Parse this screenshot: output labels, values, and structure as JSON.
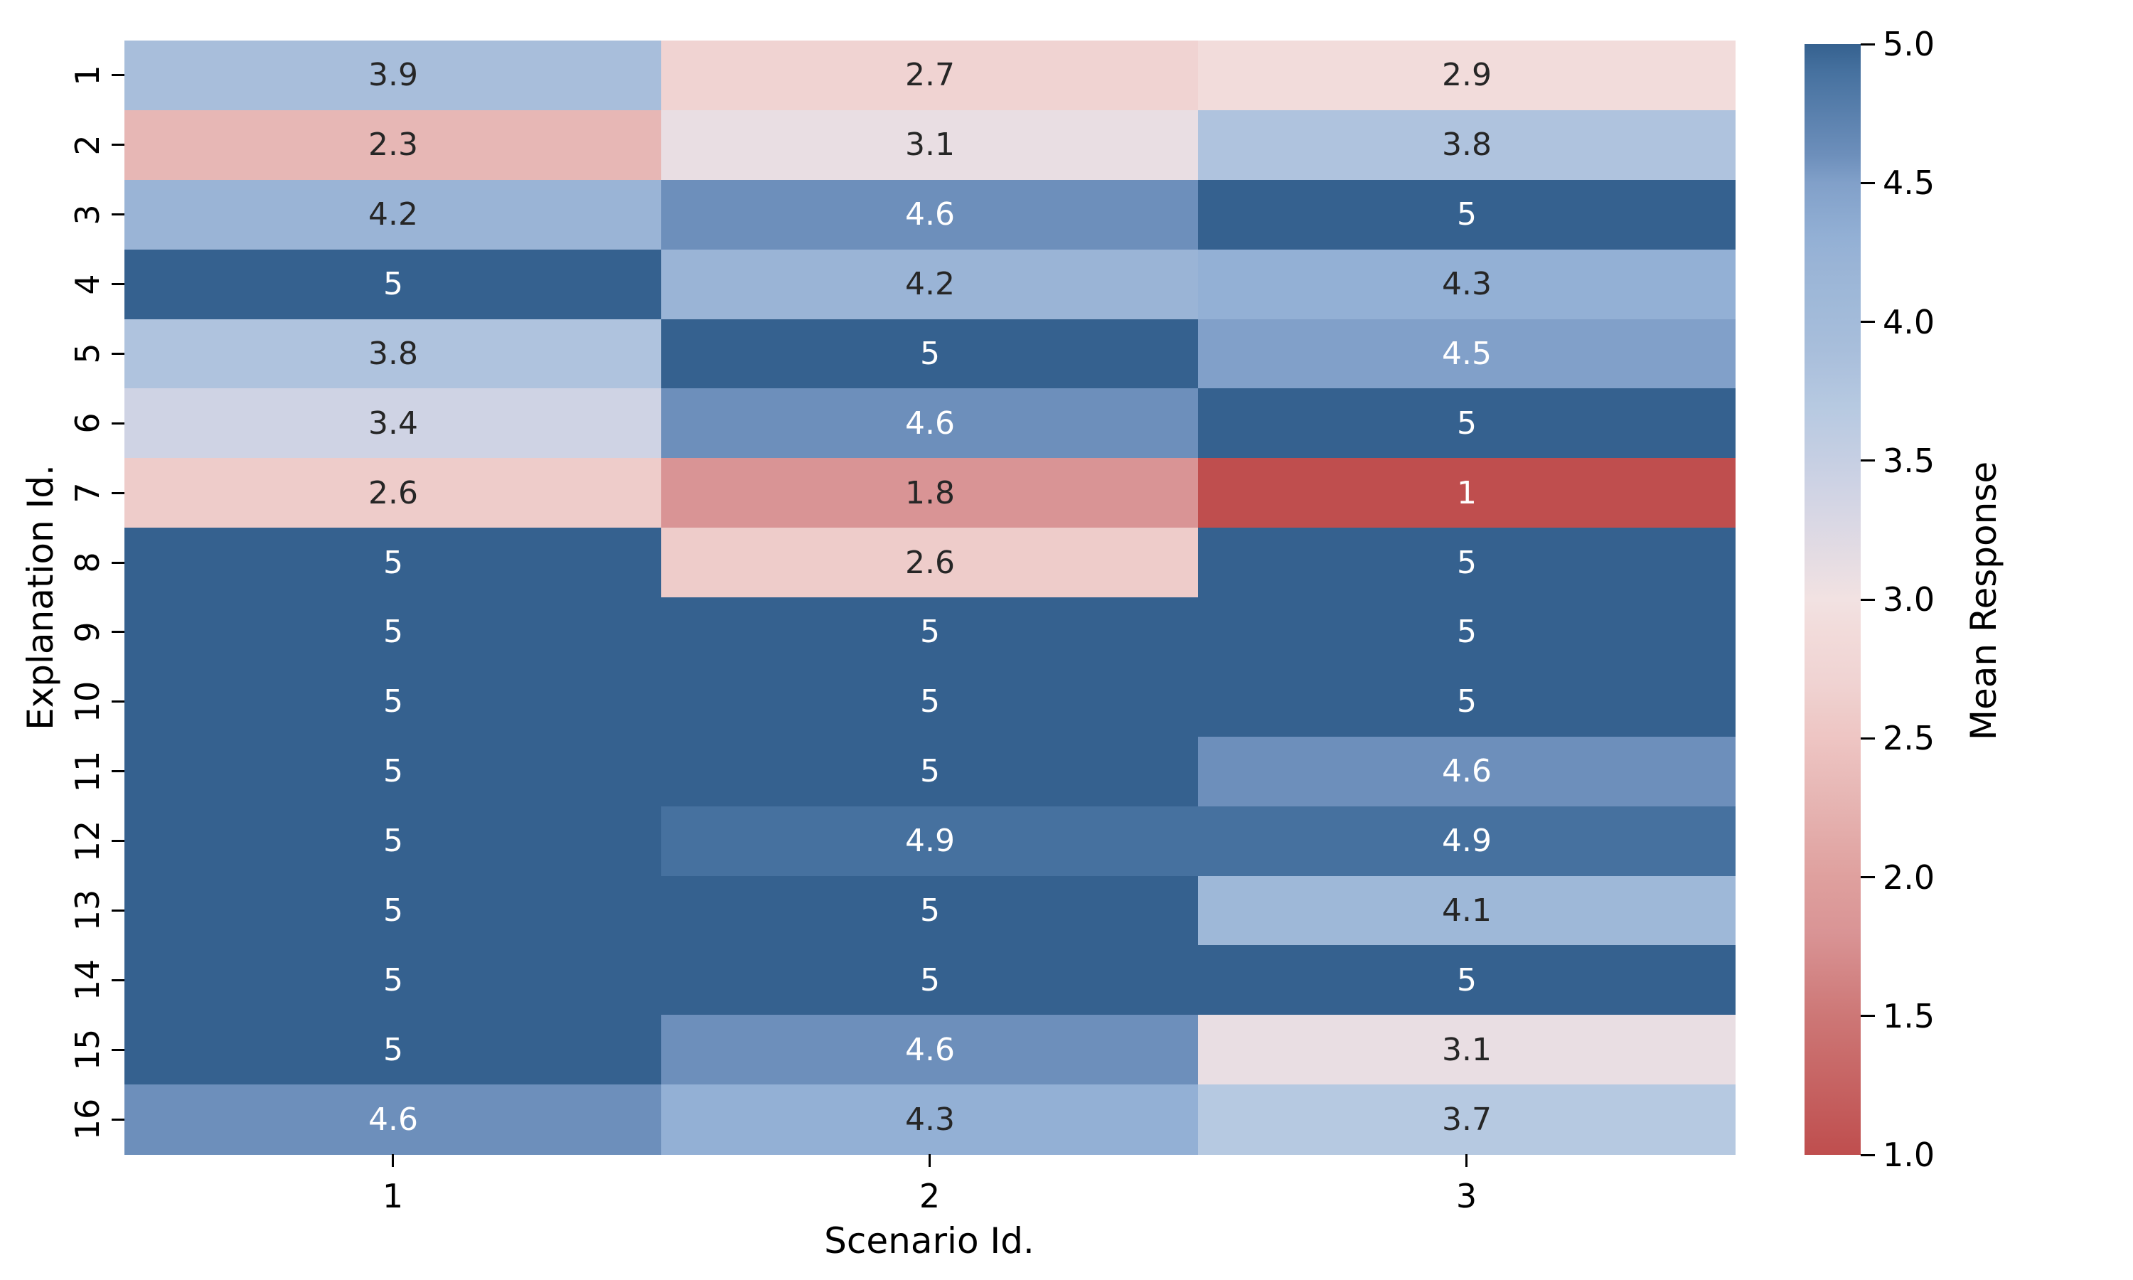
{
  "chart_data": {
    "type": "heatmap",
    "title": "",
    "xlabel": "Scenario Id.",
    "ylabel": "Explanation Id.",
    "x_categories": [
      "1",
      "2",
      "3"
    ],
    "y_categories": [
      "1",
      "2",
      "3",
      "4",
      "5",
      "6",
      "7",
      "8",
      "9",
      "10",
      "11",
      "12",
      "13",
      "14",
      "15",
      "16"
    ],
    "values": [
      [
        3.9,
        2.7,
        2.9
      ],
      [
        2.3,
        3.1,
        3.8
      ],
      [
        4.2,
        4.6,
        5
      ],
      [
        5,
        4.2,
        4.3
      ],
      [
        3.8,
        5,
        4.5
      ],
      [
        3.4,
        4.6,
        5
      ],
      [
        2.6,
        1.8,
        1
      ],
      [
        5,
        2.6,
        5
      ],
      [
        5,
        5,
        5
      ],
      [
        5,
        5,
        5
      ],
      [
        5,
        5,
        4.6
      ],
      [
        5,
        4.9,
        4.9
      ],
      [
        5,
        5,
        4.1
      ],
      [
        5,
        5,
        5
      ],
      [
        5,
        4.6,
        3.1
      ],
      [
        4.6,
        4.3,
        3.7
      ]
    ],
    "vmin": 1,
    "vmax": 5,
    "grid": false,
    "legend_position": "colorbar-right",
    "colorbar": {
      "label": "Mean Response",
      "tick_labels": [
        "5.0",
        "4.5",
        "4.0",
        "3.5",
        "3.0",
        "2.5",
        "2.0",
        "1.5",
        "1.0"
      ]
    },
    "colormap_stops": [
      {
        "v": 1.0,
        "c": "#bf4e4e"
      },
      {
        "v": 1.5,
        "c": "#cd7776"
      },
      {
        "v": 1.8,
        "c": "#d99495"
      },
      {
        "v": 2.0,
        "c": "#dfa09e"
      },
      {
        "v": 2.3,
        "c": "#e7b7b5"
      },
      {
        "v": 2.5,
        "c": "#eec5c3"
      },
      {
        "v": 2.6,
        "c": "#eeccca"
      },
      {
        "v": 2.7,
        "c": "#f0d3d2"
      },
      {
        "v": 2.9,
        "c": "#f2dcdb"
      },
      {
        "v": 3.0,
        "c": "#f2e2e2"
      },
      {
        "v": 3.1,
        "c": "#e9dee3"
      },
      {
        "v": 3.4,
        "c": "#cfd3e4"
      },
      {
        "v": 3.5,
        "c": "#c6cfe3"
      },
      {
        "v": 3.7,
        "c": "#b6c9e1"
      },
      {
        "v": 3.8,
        "c": "#afc3de"
      },
      {
        "v": 3.9,
        "c": "#a8bedb"
      },
      {
        "v": 4.1,
        "c": "#9eb8d8"
      },
      {
        "v": 4.2,
        "c": "#9ab4d6"
      },
      {
        "v": 4.3,
        "c": "#93b0d5"
      },
      {
        "v": 4.5,
        "c": "#81a0c9"
      },
      {
        "v": 4.6,
        "c": "#6d8fbb"
      },
      {
        "v": 4.9,
        "c": "#46719f"
      },
      {
        "v": 5.0,
        "c": "#35618f"
      }
    ],
    "annotation_colors": {
      "dark_text": "#262626",
      "light_text": "#ffffff",
      "white_text_high_min": 4.5,
      "white_text_low_max": 1.0
    }
  }
}
